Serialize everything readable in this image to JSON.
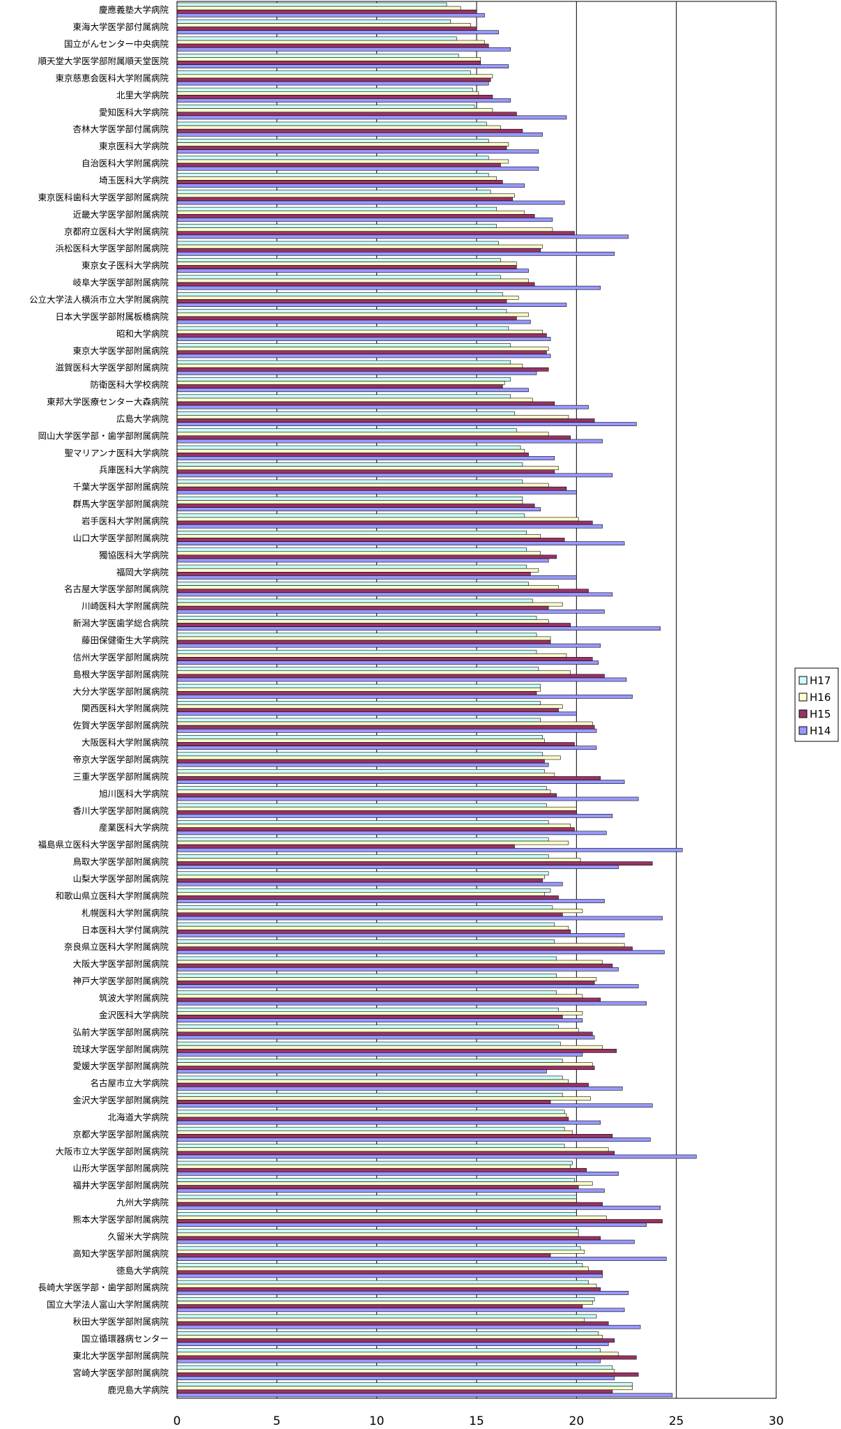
{
  "chart_data": {
    "type": "bar",
    "orientation": "horizontal",
    "xlim": [
      0,
      30
    ],
    "x_ticks": [
      0,
      5,
      10,
      15,
      20,
      25,
      30
    ],
    "grid": "vertical",
    "legend_position": "right",
    "colors": {
      "H17": "#ccffff",
      "H16": "#ffffcc",
      "H15": "#993366",
      "H14": "#9999ff"
    },
    "categories": [
      "慶應義塾大学病院",
      "東海大学医学部付属病院",
      "国立がんセンター中央病院",
      "順天堂大学医学部附属順天堂医院",
      "東京慈恵会医科大学附属病院",
      "北里大学病院",
      "愛知医科大学病院",
      "杏林大学医学部付属病院",
      "東京医科大学病院",
      "自治医科大学附属病院",
      "埼玉医科大学病院",
      "東京医科歯科大学医学部附属病院",
      "近畿大学医学部附属病院",
      "京都府立医科大学附属病院",
      "浜松医科大学医学部附属病院",
      "東京女子医科大学病院",
      "岐阜大学医学部附属病院",
      "公立大学法人横浜市立大学附属病院",
      "日本大学医学部附属板橋病院",
      "昭和大学病院",
      "東京大学医学部附属病院",
      "滋賀医科大学医学部附属病院",
      "防衛医科大学校病院",
      "東邦大学医療センター大森病院",
      "広島大学病院",
      "岡山大学医学部・歯学部附属病院",
      "聖マリアンナ医科大学病院",
      "兵庫医科大学病院",
      "千葉大学医学部附属病院",
      "群馬大学医学部附属病院",
      "岩手医科大学附属病院",
      "山口大学医学部附属病院",
      "獨協医科大学病院",
      "福岡大学病院",
      "名古屋大学医学部附属病院",
      "川崎医科大学附属病院",
      "新潟大学医歯学総合病院",
      "藤田保健衛生大学病院",
      "信州大学医学部附属病院",
      "島根大学医学部附属病院",
      "大分大学医学部附属病院",
      "関西医科大学附属病院",
      "佐賀大学医学部附属病院",
      "大阪医科大学附属病院",
      "帝京大学医学部附属病院",
      "三重大学医学部附属病院",
      "旭川医科大学病院",
      "香川大学医学部附属病院",
      "産業医科大学病院",
      "福島県立医科大学医学部附属病院",
      "鳥取大学医学部附属病院",
      "山梨大学医学部附属病院",
      "和歌山県立医科大学附属病院",
      "札幌医科大学附属病院",
      "日本医科大学付属病院",
      "奈良県立医科大学附属病院",
      "大阪大学医学部附属病院",
      "神戸大学医学部附属病院",
      "筑波大学附属病院",
      "金沢医科大学病院",
      "弘前大学医学部附属病院",
      "琉球大学医学部附属病院",
      "愛媛大学医学部附属病院",
      "名古屋市立大学病院",
      "金沢大学医学部附属病院",
      "北海道大学病院",
      "京都大学医学部附属病院",
      "大阪市立大学医学部附属病院",
      "山形大学医学部附属病院",
      "福井大学医学部附属病院",
      "九州大学病院",
      "熊本大学医学部附属病院",
      "久留米大学病院",
      "高知大学医学部附属病院",
      "徳島大学病院",
      "長崎大学医学部・歯学部附属病院",
      "国立大学法人富山大学附属病院",
      "秋田大学医学部附属病院",
      "国立循環器病センター",
      "東北大学医学部附属病院",
      "宮崎大学医学部附属病院",
      "鹿児島大学病院"
    ],
    "series": [
      {
        "name": "H17",
        "values": [
          13.5,
          13.7,
          14.0,
          14.1,
          14.7,
          14.8,
          14.9,
          15.5,
          15.6,
          15.6,
          15.6,
          15.7,
          16.0,
          16.0,
          16.1,
          16.2,
          16.2,
          16.3,
          16.5,
          16.6,
          16.7,
          16.7,
          16.7,
          16.7,
          16.9,
          17.0,
          17.2,
          17.3,
          17.3,
          17.3,
          17.4,
          17.5,
          17.5,
          17.5,
          17.6,
          17.8,
          18.0,
          18.0,
          18.0,
          18.1,
          18.2,
          18.2,
          18.2,
          18.3,
          18.3,
          18.4,
          18.5,
          18.5,
          18.6,
          18.6,
          18.6,
          18.6,
          18.7,
          18.8,
          18.9,
          18.9,
          19.0,
          19.0,
          19.0,
          19.1,
          19.1,
          19.2,
          19.3,
          19.3,
          19.3,
          19.4,
          19.4,
          19.4,
          19.8,
          19.9,
          20.0,
          20.0,
          20.1,
          20.2,
          20.3,
          20.6,
          20.9,
          21.0,
          21.1,
          21.2,
          21.8,
          22.8
        ]
      },
      {
        "name": "H16",
        "values": [
          14.2,
          14.7,
          15.4,
          15.2,
          15.8,
          15.1,
          15.8,
          16.2,
          16.6,
          16.6,
          16.0,
          16.9,
          17.4,
          18.8,
          18.3,
          17.0,
          17.6,
          17.1,
          17.6,
          18.3,
          18.6,
          17.3,
          16.4,
          17.8,
          19.6,
          18.6,
          17.4,
          19.1,
          18.6,
          17.3,
          20.1,
          18.2,
          18.2,
          18.1,
          19.1,
          19.3,
          18.6,
          18.7,
          19.5,
          19.7,
          18.2,
          19.3,
          20.8,
          18.4,
          19.2,
          18.9,
          18.7,
          20.0,
          19.7,
          19.6,
          20.2,
          18.4,
          18.4,
          20.3,
          19.6,
          22.4,
          21.3,
          21.0,
          20.3,
          20.3,
          20.1,
          21.3,
          20.8,
          19.6,
          20.7,
          19.5,
          19.8,
          21.6,
          19.7,
          20.8,
          20.0,
          21.5,
          20.1,
          20.4,
          20.6,
          21.0,
          20.8,
          20.4,
          21.3,
          22.1,
          21.9,
          22.8
        ]
      },
      {
        "name": "H15",
        "values": [
          15.0,
          15.0,
          15.6,
          15.2,
          15.7,
          15.8,
          17.0,
          17.3,
          16.5,
          16.2,
          16.3,
          16.8,
          17.9,
          19.9,
          18.2,
          17.0,
          17.9,
          16.5,
          17.0,
          18.5,
          18.5,
          18.6,
          16.3,
          18.9,
          20.9,
          19.7,
          17.6,
          18.9,
          19.5,
          17.9,
          20.8,
          19.4,
          19.0,
          17.7,
          20.6,
          18.6,
          19.7,
          18.7,
          20.8,
          21.4,
          18.0,
          19.1,
          20.9,
          19.9,
          18.4,
          21.2,
          19.0,
          20.0,
          19.9,
          16.9,
          23.8,
          18.3,
          19.1,
          19.3,
          19.7,
          22.8,
          21.8,
          20.9,
          21.2,
          19.3,
          20.8,
          22.0,
          20.9,
          20.6,
          18.7,
          19.6,
          21.8,
          21.9,
          20.5,
          20.1,
          21.3,
          24.3,
          21.2,
          18.7,
          21.3,
          21.2,
          20.3,
          21.6,
          21.9,
          23.0,
          23.1,
          21.8
        ]
      },
      {
        "name": "H14",
        "values": [
          15.4,
          16.1,
          16.7,
          16.6,
          15.6,
          16.7,
          19.5,
          18.3,
          18.1,
          18.1,
          17.4,
          19.4,
          18.8,
          22.6,
          21.9,
          17.6,
          21.2,
          19.5,
          17.7,
          18.7,
          18.7,
          18.0,
          17.6,
          20.6,
          23.0,
          21.3,
          18.9,
          21.8,
          20.0,
          18.2,
          21.3,
          22.4,
          18.6,
          20.0,
          21.8,
          21.4,
          24.2,
          21.2,
          21.1,
          22.5,
          22.8,
          20.0,
          21.0,
          21.0,
          18.6,
          22.4,
          23.1,
          21.8,
          21.5,
          25.3,
          22.1,
          19.3,
          21.4,
          24.3,
          22.4,
          24.4,
          22.1,
          23.1,
          23.5,
          20.3,
          20.9,
          20.3,
          18.5,
          22.3,
          23.8,
          21.2,
          23.7,
          26.0,
          22.1,
          21.4,
          24.2,
          23.5,
          22.9,
          24.5,
          21.3,
          22.6,
          22.4,
          23.2,
          21.6,
          21.2,
          21.9,
          24.8
        ]
      }
    ]
  }
}
